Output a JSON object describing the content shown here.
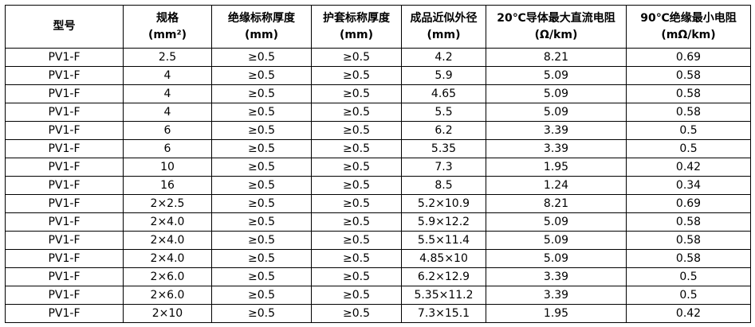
{
  "table": {
    "header": [
      [
        "型号"
      ],
      [
        "规格",
        "(mm²)"
      ],
      [
        "绝缘标称厚度",
        "(mm)"
      ],
      [
        "护套标称厚度",
        "(mm)"
      ],
      [
        "成品近似外径",
        "(mm)"
      ],
      [
        "20℃导体最大直流电阻",
        "(Ω/km)"
      ],
      [
        "90℃绝缘最小电阻",
        "(mΩ/km)"
      ]
    ],
    "rows": [
      [
        "PV1-F",
        "2.5",
        "≥0.5",
        "≥0.5",
        "4.2",
        "8.21",
        "0.69"
      ],
      [
        "PV1-F",
        "4",
        "≥0.5",
        "≥0.5",
        "5.9",
        "5.09",
        "0.58"
      ],
      [
        "PV1-F",
        "4",
        "≥0.5",
        "≥0.5",
        "4.65",
        "5.09",
        "0.58"
      ],
      [
        "PV1-F",
        "4",
        "≥0.5",
        "≥0.5",
        "5.5",
        "5.09",
        "0.58"
      ],
      [
        "PV1-F",
        "6",
        "≥0.5",
        "≥0.5",
        "6.2",
        "3.39",
        "0.5"
      ],
      [
        "PV1-F",
        "6",
        "≥0.5",
        "≥0.5",
        "5.35",
        "3.39",
        "0.5"
      ],
      [
        "PV1-F",
        "10",
        "≥0.5",
        "≥0.5",
        "7.3",
        "1.95",
        "0.42"
      ],
      [
        "PV1-F",
        "16",
        "≥0.5",
        "≥0.5",
        "8.5",
        "1.24",
        "0.34"
      ],
      [
        "PV1-F",
        "2×2.5",
        "≥0.5",
        "≥0.5",
        "5.2×10.9",
        "8.21",
        "0.69"
      ],
      [
        "PV1-F",
        "2×4.0",
        "≥0.5",
        "≥0.5",
        "5.9×12.2",
        "5.09",
        "0.58"
      ],
      [
        "PV1-F",
        "2×4.0",
        "≥0.5",
        "≥0.5",
        "5.5×11.4",
        "5.09",
        "0.58"
      ],
      [
        "PV1-F",
        "2×4.0",
        "≥0.5",
        "≥0.5",
        "4.85×10",
        "5.09",
        "0.58"
      ],
      [
        "PV1-F",
        "2×6.0",
        "≥0.5",
        "≥0.5",
        "6.2×12.9",
        "3.39",
        "0.5"
      ],
      [
        "PV1-F",
        "2×6.0",
        "≥0.5",
        "≥0.5",
        "5.35×11.2",
        "3.39",
        "0.5"
      ],
      [
        "PV1-F",
        "2×10",
        "≥0.5",
        "≥0.5",
        "7.3×15.1",
        "1.95",
        "0.42"
      ]
    ]
  }
}
